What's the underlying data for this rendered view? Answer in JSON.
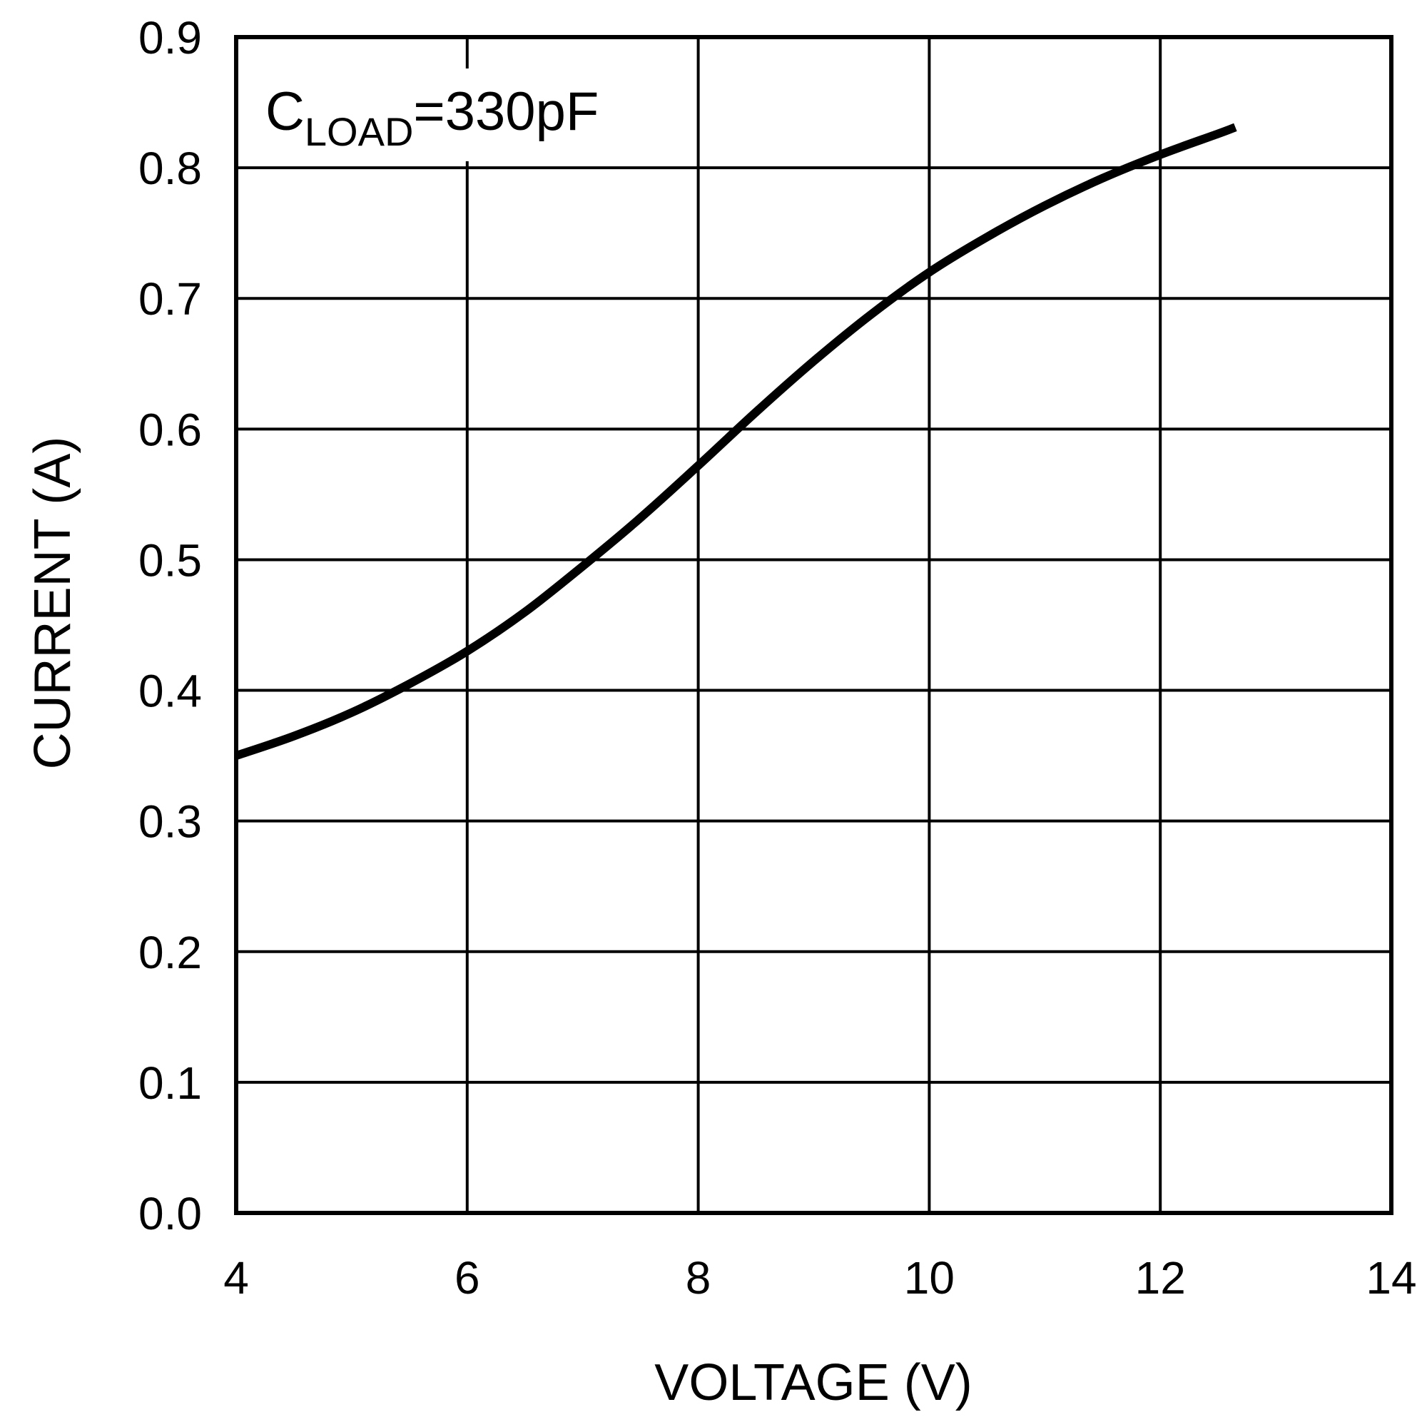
{
  "chart_data": {
    "type": "line",
    "title": "",
    "xlabel": "VOLTAGE (V)",
    "ylabel": "CURRENT (A)",
    "xlim": [
      4,
      14
    ],
    "ylim": [
      0,
      0.9
    ],
    "xticks": [
      4,
      6,
      8,
      10,
      12,
      14
    ],
    "xtick_labels": [
      "4",
      "6",
      "8",
      "10",
      "12",
      "14"
    ],
    "yticks": [
      0,
      0.1,
      0.2,
      0.3,
      0.4,
      0.5,
      0.6,
      0.7,
      0.8,
      0.9
    ],
    "ytick_labels": [
      "0.0",
      "0.1",
      "0.2",
      "0.3",
      "0.4",
      "0.5",
      "0.6",
      "0.7",
      "0.8",
      "0.9"
    ],
    "grid": true,
    "annotation": {
      "main": "C",
      "sub": "LOAD",
      "rest": "=330pF"
    },
    "series": [
      {
        "x": [
          4.0,
          4.5,
          5.0,
          5.5,
          6.0,
          6.5,
          7.0,
          7.5,
          8.0,
          8.5,
          9.0,
          9.5,
          10.0,
          10.5,
          11.0,
          11.5,
          12.0,
          12.5,
          12.65
        ],
        "y": [
          0.35,
          0.365,
          0.383,
          0.405,
          0.43,
          0.46,
          0.495,
          0.532,
          0.572,
          0.613,
          0.652,
          0.688,
          0.72,
          0.747,
          0.771,
          0.792,
          0.81,
          0.826,
          0.831
        ]
      }
    ],
    "colors": {
      "line": "#000000",
      "grid": "#000000",
      "background": "#ffffff"
    }
  }
}
